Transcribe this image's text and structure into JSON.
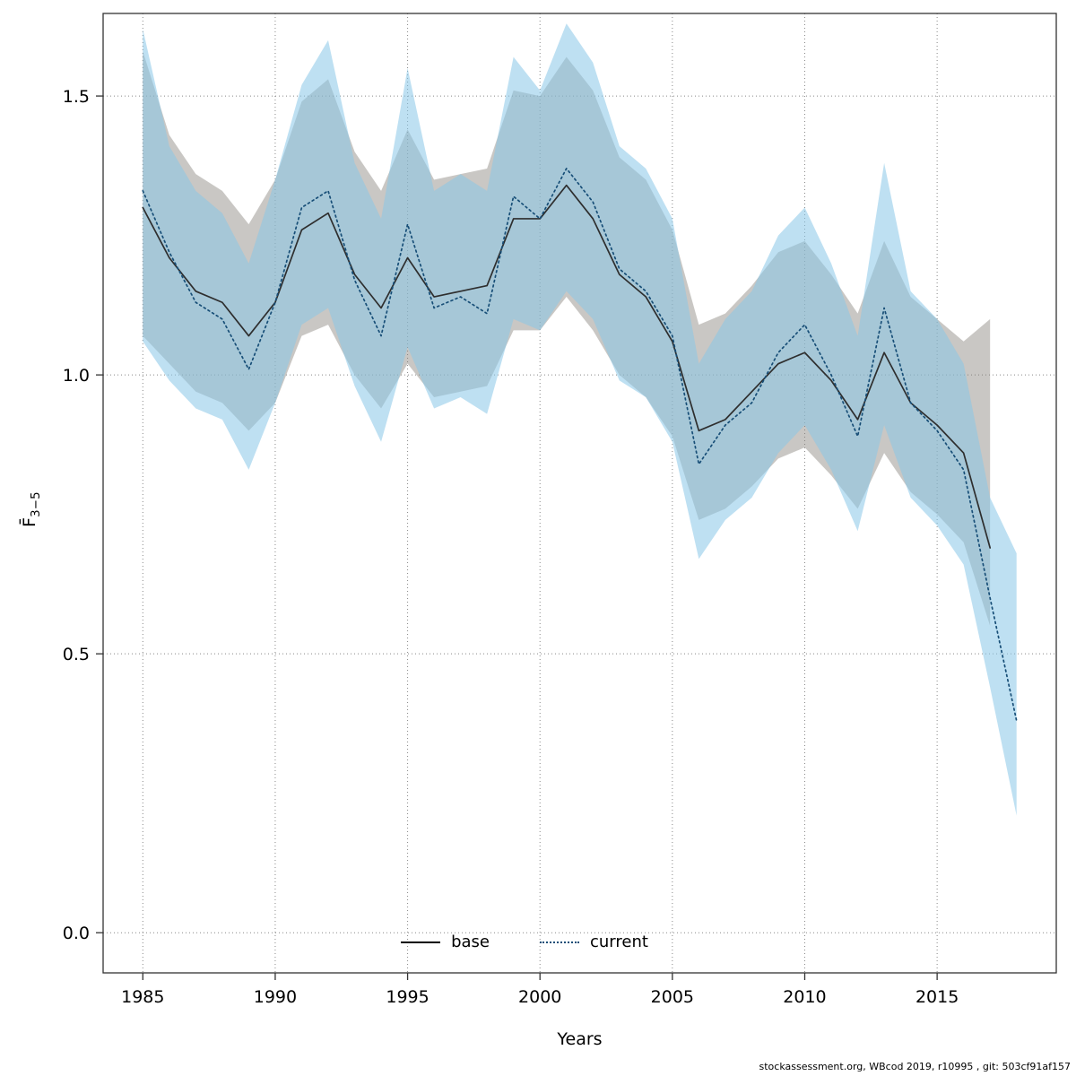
{
  "page": {
    "xlabel": "Years",
    "ylabel_main": "F̄",
    "ylabel_sub": "3−5",
    "footer": "stockassessment.org, WBcod 2019, r10995 , git: 503cf91af157"
  },
  "legend": {
    "items": [
      {
        "label": "base",
        "style": "solid",
        "color": "#000000"
      },
      {
        "label": "current",
        "style": "dotted",
        "color": "#174e77"
      }
    ]
  },
  "chart_data": {
    "type": "line",
    "title": "",
    "xlabel": "Years",
    "ylabel": "F̄3−5",
    "xlim": [
      1983.5,
      2019.5
    ],
    "ylim": [
      -0.072,
      1.648
    ],
    "xticks": [
      1985,
      1990,
      1995,
      2000,
      2005,
      2010,
      2015
    ],
    "yticks": [
      0.0,
      0.5,
      1.0,
      1.5
    ],
    "grid": true,
    "legend_position": "bottom-center",
    "colors": {
      "grid": "#888888",
      "axis": "#333333",
      "base_line": "#2e2e2e",
      "base_band": "rgba(135,130,124,0.45)",
      "current_line": "#174e77",
      "current_band": "rgba(136,198,232,0.55)"
    },
    "series": [
      {
        "name": "base",
        "line_style": "solid",
        "color": "#2e2e2e",
        "band_color": "rgba(135,130,124,0.45)",
        "x": [
          1985,
          1986,
          1987,
          1988,
          1989,
          1990,
          1991,
          1992,
          1993,
          1994,
          1995,
          1996,
          1997,
          1998,
          1999,
          2000,
          2001,
          2002,
          2003,
          2004,
          2005,
          2006,
          2007,
          2008,
          2009,
          2010,
          2011,
          2012,
          2013,
          2014,
          2015,
          2016,
          2017
        ],
        "y": [
          1.3,
          1.21,
          1.15,
          1.13,
          1.07,
          1.13,
          1.26,
          1.29,
          1.18,
          1.12,
          1.21,
          1.14,
          1.15,
          1.16,
          1.28,
          1.28,
          1.34,
          1.28,
          1.18,
          1.14,
          1.06,
          0.9,
          0.92,
          0.97,
          1.02,
          1.04,
          0.99,
          0.92,
          1.04,
          0.95,
          0.91,
          0.86,
          0.69
        ],
        "band_upper": [
          1.58,
          1.43,
          1.36,
          1.33,
          1.27,
          1.35,
          1.49,
          1.53,
          1.4,
          1.33,
          1.44,
          1.35,
          1.36,
          1.37,
          1.51,
          1.5,
          1.57,
          1.51,
          1.39,
          1.35,
          1.26,
          1.09,
          1.11,
          1.16,
          1.22,
          1.24,
          1.18,
          1.11,
          1.24,
          1.14,
          1.1,
          1.06,
          1.1
        ],
        "band_lower": [
          1.07,
          1.02,
          0.97,
          0.95,
          0.9,
          0.95,
          1.07,
          1.09,
          1.0,
          0.94,
          1.02,
          0.96,
          0.97,
          0.98,
          1.08,
          1.08,
          1.14,
          1.08,
          1.0,
          0.96,
          0.89,
          0.74,
          0.76,
          0.8,
          0.85,
          0.87,
          0.82,
          0.76,
          0.86,
          0.79,
          0.75,
          0.7,
          0.55
        ]
      },
      {
        "name": "current",
        "line_style": "dotted",
        "color": "#174e77",
        "band_color": "rgba(136,198,232,0.55)",
        "x": [
          1985,
          1986,
          1987,
          1988,
          1989,
          1990,
          1991,
          1992,
          1993,
          1994,
          1995,
          1996,
          1997,
          1998,
          1999,
          2000,
          2001,
          2002,
          2003,
          2004,
          2005,
          2006,
          2007,
          2008,
          2009,
          2010,
          2011,
          2012,
          2013,
          2014,
          2015,
          2016,
          2017,
          2018
        ],
        "y": [
          1.33,
          1.22,
          1.13,
          1.1,
          1.01,
          1.13,
          1.3,
          1.33,
          1.17,
          1.07,
          1.27,
          1.12,
          1.14,
          1.11,
          1.32,
          1.28,
          1.37,
          1.31,
          1.19,
          1.15,
          1.07,
          0.84,
          0.91,
          0.95,
          1.04,
          1.09,
          1.0,
          0.89,
          1.12,
          0.95,
          0.9,
          0.83,
          0.6,
          0.38
        ],
        "band_upper": [
          1.62,
          1.41,
          1.33,
          1.29,
          1.2,
          1.35,
          1.52,
          1.6,
          1.38,
          1.28,
          1.55,
          1.33,
          1.36,
          1.33,
          1.57,
          1.51,
          1.63,
          1.56,
          1.41,
          1.37,
          1.28,
          1.02,
          1.1,
          1.15,
          1.25,
          1.3,
          1.2,
          1.07,
          1.38,
          1.15,
          1.1,
          1.02,
          0.78,
          0.68
        ],
        "band_lower": [
          1.06,
          0.99,
          0.94,
          0.92,
          0.83,
          0.95,
          1.09,
          1.12,
          0.98,
          0.88,
          1.05,
          0.94,
          0.96,
          0.93,
          1.1,
          1.08,
          1.15,
          1.1,
          0.99,
          0.96,
          0.88,
          0.67,
          0.74,
          0.78,
          0.86,
          0.91,
          0.83,
          0.72,
          0.91,
          0.78,
          0.73,
          0.66,
          0.44,
          0.21
        ]
      }
    ]
  }
}
